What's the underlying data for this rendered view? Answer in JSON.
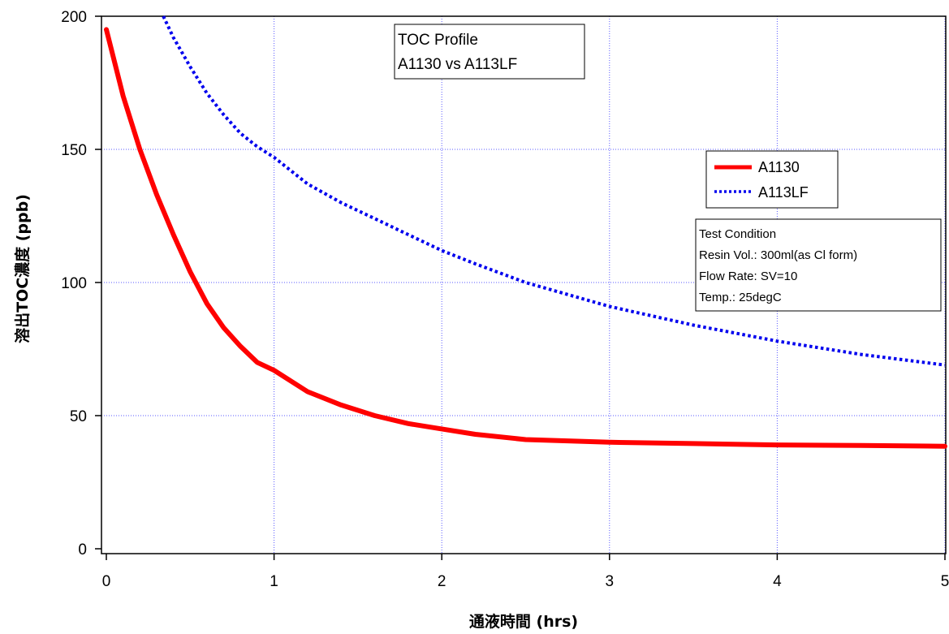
{
  "chart_data": {
    "type": "line",
    "title_lines": [
      "TOC Profile",
      "A1130 vs A113LF"
    ],
    "xlabel": "通液時間 (hrs)",
    "ylabel": "溶出TOC濃度 (ppb)",
    "xlim": [
      0,
      5
    ],
    "ylim": [
      0,
      200
    ],
    "xticks": [
      0,
      1,
      2,
      3,
      4,
      5
    ],
    "yticks": [
      0,
      50,
      100,
      150,
      200
    ],
    "grid": true,
    "legend_position": "upper-right",
    "series": [
      {
        "name": "A1130",
        "color": "#ff0000",
        "style": "solid",
        "x": [
          0,
          0.1,
          0.2,
          0.3,
          0.4,
          0.5,
          0.6,
          0.7,
          0.8,
          0.9,
          1.0,
          1.2,
          1.4,
          1.6,
          1.8,
          2.0,
          2.2,
          2.5,
          3.0,
          3.5,
          4.0,
          4.5,
          5.0
        ],
        "y": [
          195,
          170,
          150,
          133,
          118,
          104,
          92,
          83,
          76,
          70,
          67,
          59,
          54,
          50,
          47,
          45,
          43,
          41,
          40,
          39.5,
          39,
          38.8,
          38.5
        ]
      },
      {
        "name": "A113LF",
        "color": "#0000ee",
        "style": "dotted",
        "x": [
          0.34,
          0.4,
          0.5,
          0.6,
          0.7,
          0.8,
          0.9,
          1.0,
          1.2,
          1.4,
          1.6,
          1.8,
          2.0,
          2.2,
          2.5,
          3.0,
          3.5,
          4.0,
          4.5,
          5.0
        ],
        "y": [
          200,
          192,
          181,
          171,
          163,
          156,
          151,
          147,
          137,
          130,
          124,
          118,
          112,
          107,
          100,
          91,
          84,
          78,
          73,
          69
        ]
      }
    ]
  },
  "test_condition": {
    "lines": [
      "Test Condition",
      "Resin Vol.: 300ml(as Cl form)",
      "Flow Rate: SV=10",
      "Temp.: 25degC"
    ]
  }
}
